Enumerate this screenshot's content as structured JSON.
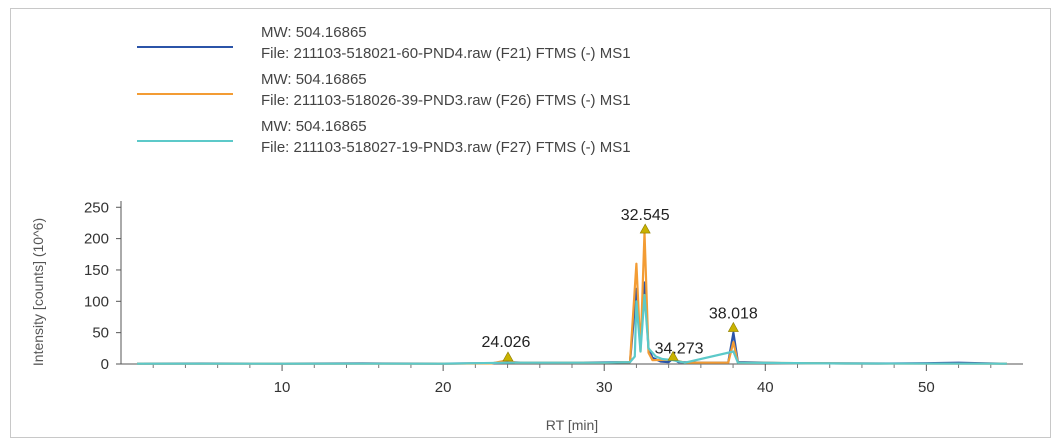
{
  "chart_data": {
    "type": "line",
    "xlabel": "RT [min]",
    "ylabel": "Intensity [counts] (10^6)",
    "xlim": [
      0,
      56
    ],
    "ylim": [
      0,
      260
    ],
    "x_ticks": [
      "10",
      "20",
      "30",
      "40",
      "50"
    ],
    "y_ticks": [
      "0",
      "50",
      "100",
      "150",
      "200",
      "250"
    ],
    "grid": false,
    "legend_position": "top-left",
    "legend": [
      {
        "line1": "MW: 504.16865",
        "line2": "File: 211103-518021-60-PND4.raw (F21) FTMS (-) MS1",
        "color": "#2b54a8"
      },
      {
        "line1": "MW: 504.16865",
        "line2": "File: 211103-518026-39-PND3.raw (F26) FTMS (-) MS1",
        "color": "#f39c34"
      },
      {
        "line1": "MW: 504.16865",
        "line2": "File: 211103-518027-19-PND3.raw (F27) FTMS (-) MS1",
        "color": "#5cc9c9"
      }
    ],
    "series": [
      {
        "color": "#2b54a8",
        "points": [
          [
            1,
            0.6
          ],
          [
            5,
            0.8
          ],
          [
            10,
            0.6
          ],
          [
            15,
            0.9
          ],
          [
            20,
            0.7
          ],
          [
            23,
            1.2
          ],
          [
            24,
            3
          ],
          [
            25,
            2
          ],
          [
            28,
            2
          ],
          [
            30,
            2.5
          ],
          [
            31.6,
            3
          ],
          [
            32.0,
            120
          ],
          [
            32.25,
            30
          ],
          [
            32.5,
            130
          ],
          [
            32.75,
            25
          ],
          [
            33.0,
            10
          ],
          [
            33.5,
            4
          ],
          [
            34.0,
            3
          ],
          [
            34.27,
            9
          ],
          [
            34.6,
            3
          ],
          [
            36,
            2
          ],
          [
            37.7,
            2
          ],
          [
            38.02,
            50
          ],
          [
            38.3,
            3
          ],
          [
            40,
            2
          ],
          [
            41,
            1.5
          ],
          [
            44,
            1.0
          ],
          [
            47,
            0.8
          ],
          [
            50,
            1.2
          ],
          [
            52,
            2
          ],
          [
            53,
            1.5
          ],
          [
            55,
            0.5
          ]
        ]
      },
      {
        "color": "#f39c34",
        "points": [
          [
            1,
            0.4
          ],
          [
            10,
            0.5
          ],
          [
            20,
            0.5
          ],
          [
            23,
            1
          ],
          [
            24,
            6
          ],
          [
            24.5,
            2
          ],
          [
            30,
            2
          ],
          [
            31.6,
            3
          ],
          [
            32.0,
            160
          ],
          [
            32.25,
            20
          ],
          [
            32.5,
            210
          ],
          [
            32.75,
            18
          ],
          [
            33.0,
            6
          ],
          [
            34.27,
            7
          ],
          [
            35,
            2
          ],
          [
            37.7,
            2
          ],
          [
            38.02,
            35
          ],
          [
            38.3,
            2
          ],
          [
            45,
            0.8
          ],
          [
            55,
            0.4
          ]
        ]
      },
      {
        "color": "#5cc9c9",
        "points": [
          [
            1,
            0.4
          ],
          [
            10,
            0.5
          ],
          [
            20,
            0.5
          ],
          [
            24,
            2
          ],
          [
            30,
            2
          ],
          [
            31.6,
            3
          ],
          [
            31.9,
            12
          ],
          [
            32.0,
            100
          ],
          [
            32.25,
            20
          ],
          [
            32.5,
            110
          ],
          [
            32.75,
            25
          ],
          [
            33.2,
            12
          ],
          [
            33.6,
            8
          ],
          [
            34.27,
            6
          ],
          [
            35,
            2
          ],
          [
            38.02,
            20
          ],
          [
            38.3,
            2
          ],
          [
            45,
            0.8
          ],
          [
            55,
            0.4
          ]
        ]
      }
    ],
    "annotations": [
      {
        "label": "24.026",
        "x": 24.026,
        "y": 8
      },
      {
        "label": "32.545",
        "x": 32.545,
        "y": 212
      },
      {
        "label": "34.273",
        "x": 34.273,
        "y": 9
      },
      {
        "label": "38.018",
        "x": 38.018,
        "y": 55
      }
    ]
  }
}
